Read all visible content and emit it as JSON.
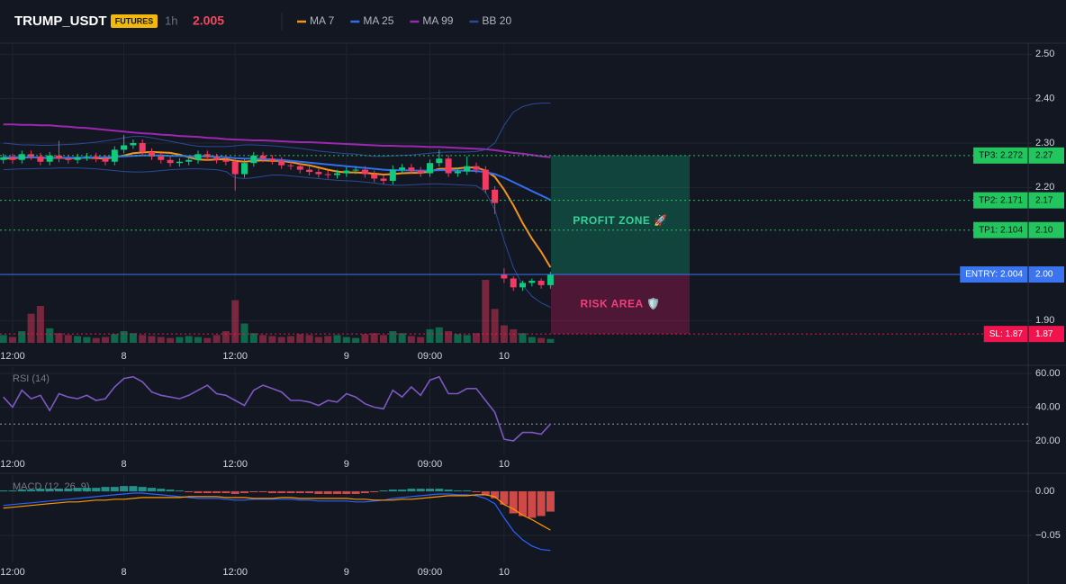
{
  "chart_data": [
    {
      "type": "candlestick",
      "title": "TRUMP_USDT",
      "badge": "FUTURES",
      "interval": "1h",
      "last_price": 2.005,
      "last_price_color": "#f6465d",
      "categories": [
        null,
        "12:00",
        null,
        null,
        null,
        null,
        null,
        null,
        null,
        null,
        null,
        null,
        null,
        "8",
        null,
        null,
        null,
        null,
        null,
        null,
        null,
        null,
        null,
        null,
        null,
        "12:00",
        null,
        null,
        null,
        null,
        null,
        null,
        null,
        null,
        null,
        null,
        null,
        "9",
        null,
        null,
        null,
        null,
        null,
        null,
        null,
        null,
        "09:00",
        null,
        null,
        null,
        null,
        null,
        null,
        null,
        "10",
        null,
        null,
        null,
        null,
        null
      ],
      "open": [
        2.262,
        2.268,
        2.262,
        2.275,
        2.27,
        2.258,
        2.272,
        2.265,
        2.262,
        2.268,
        2.27,
        2.265,
        2.258,
        2.285,
        2.295,
        2.3,
        2.28,
        2.27,
        2.262,
        2.255,
        2.258,
        2.262,
        2.275,
        2.268,
        2.262,
        2.258,
        2.23,
        2.255,
        2.272,
        2.265,
        2.26,
        2.25,
        2.248,
        2.24,
        2.235,
        2.23,
        2.228,
        2.232,
        2.238,
        2.24,
        2.23,
        2.22,
        2.215,
        2.24,
        2.245,
        2.238,
        2.232,
        2.255,
        2.265,
        2.232,
        2.236,
        2.248,
        2.24,
        2.195,
        2.005,
        1.995,
        1.975,
        1.985,
        1.99,
        1.98
      ],
      "high": [
        2.276,
        2.276,
        2.283,
        2.283,
        2.278,
        2.28,
        2.305,
        2.273,
        2.276,
        2.278,
        2.278,
        2.273,
        2.293,
        2.318,
        2.308,
        2.308,
        2.288,
        2.278,
        2.27,
        2.266,
        2.27,
        2.283,
        2.283,
        2.276,
        2.27,
        2.266,
        2.263,
        2.28,
        2.28,
        2.273,
        2.268,
        2.258,
        2.256,
        2.248,
        2.243,
        2.238,
        2.24,
        2.246,
        2.248,
        2.248,
        2.238,
        2.228,
        2.25,
        2.253,
        2.253,
        2.246,
        2.263,
        2.285,
        2.273,
        2.244,
        2.27,
        2.256,
        2.248,
        2.203,
        2.018,
        2.0,
        1.99,
        1.995,
        1.995,
        2.01
      ],
      "low": [
        2.254,
        2.254,
        2.254,
        2.262,
        2.25,
        2.25,
        2.257,
        2.254,
        2.254,
        2.26,
        2.257,
        2.25,
        2.25,
        2.277,
        2.287,
        2.272,
        2.262,
        2.254,
        2.247,
        2.247,
        2.25,
        2.254,
        2.26,
        2.254,
        2.25,
        2.193,
        2.222,
        2.247,
        2.257,
        2.252,
        2.242,
        2.24,
        2.232,
        2.227,
        2.222,
        2.22,
        2.22,
        2.224,
        2.23,
        2.222,
        2.212,
        2.207,
        2.207,
        2.232,
        2.23,
        2.224,
        2.224,
        2.247,
        2.224,
        2.224,
        2.228,
        2.232,
        2.187,
        2.14,
        1.985,
        1.967,
        1.967,
        1.977,
        1.972,
        1.972
      ],
      "close": [
        2.268,
        2.262,
        2.275,
        2.27,
        2.258,
        2.272,
        2.265,
        2.262,
        2.268,
        2.27,
        2.265,
        2.258,
        2.285,
        2.295,
        2.3,
        2.28,
        2.27,
        2.262,
        2.255,
        2.258,
        2.262,
        2.275,
        2.268,
        2.262,
        2.258,
        2.23,
        2.255,
        2.272,
        2.265,
        2.26,
        2.25,
        2.248,
        2.24,
        2.235,
        2.23,
        2.228,
        2.232,
        2.238,
        2.24,
        2.23,
        2.22,
        2.215,
        2.24,
        2.245,
        2.238,
        2.232,
        2.255,
        2.265,
        2.232,
        2.236,
        2.248,
        2.24,
        2.195,
        2.165,
        1.995,
        1.975,
        1.985,
        1.99,
        1.98,
        2.005
      ],
      "volume": [
        8,
        6,
        12,
        30,
        38,
        15,
        10,
        8,
        7,
        6,
        5,
        6,
        9,
        12,
        10,
        8,
        7,
        6,
        5,
        6,
        7,
        6,
        5,
        8,
        12,
        44,
        20,
        10,
        8,
        7,
        6,
        7,
        9,
        8,
        6,
        7,
        8,
        6,
        5,
        9,
        10,
        8,
        12,
        10,
        7,
        6,
        14,
        16,
        12,
        9,
        8,
        10,
        65,
        35,
        18,
        14,
        10,
        6,
        5,
        4
      ],
      "up_color": "#0ecb81",
      "down_color": "#f23a62",
      "series": [
        {
          "name": "MA 7",
          "color": "#f7931a",
          "values": [
            2.265,
            2.266,
            2.267,
            2.268,
            2.267,
            2.266,
            2.267,
            2.266,
            2.266,
            2.267,
            2.266,
            2.265,
            2.268,
            2.272,
            2.277,
            2.279,
            2.28,
            2.279,
            2.278,
            2.274,
            2.268,
            2.263,
            2.262,
            2.263,
            2.264,
            2.26,
            2.258,
            2.26,
            2.261,
            2.26,
            2.26,
            2.257,
            2.253,
            2.25,
            2.245,
            2.24,
            2.236,
            2.234,
            2.234,
            2.233,
            2.231,
            2.229,
            2.23,
            2.232,
            2.233,
            2.233,
            2.236,
            2.242,
            2.242,
            2.243,
            2.245,
            2.245,
            2.238,
            2.224,
            2.195,
            2.16,
            2.12,
            2.085,
            2.055,
            2.02
          ]
        },
        {
          "name": "MA 25",
          "color": "#2f6fed",
          "values": [
            2.268,
            2.268,
            2.268,
            2.268,
            2.267,
            2.267,
            2.267,
            2.267,
            2.267,
            2.267,
            2.268,
            2.268,
            2.269,
            2.27,
            2.271,
            2.272,
            2.272,
            2.272,
            2.271,
            2.271,
            2.27,
            2.27,
            2.27,
            2.269,
            2.268,
            2.266,
            2.265,
            2.265,
            2.264,
            2.263,
            2.262,
            2.26,
            2.258,
            2.256,
            2.254,
            2.252,
            2.25,
            2.248,
            2.246,
            2.244,
            2.242,
            2.24,
            2.239,
            2.239,
            2.238,
            2.238,
            2.238,
            2.239,
            2.239,
            2.238,
            2.238,
            2.237,
            2.235,
            2.23,
            2.222,
            2.212,
            2.202,
            2.192,
            2.182,
            2.172
          ]
        },
        {
          "name": "MA 99",
          "color": "#9c27b0",
          "values": [
            2.342,
            2.342,
            2.341,
            2.341,
            2.34,
            2.34,
            2.338,
            2.337,
            2.335,
            2.334,
            2.332,
            2.33,
            2.328,
            2.326,
            2.324,
            2.322,
            2.321,
            2.319,
            2.318,
            2.316,
            2.315,
            2.314,
            2.312,
            2.311,
            2.309,
            2.308,
            2.307,
            2.306,
            2.306,
            2.305,
            2.304,
            2.303,
            2.302,
            2.302,
            2.301,
            2.3,
            2.299,
            2.298,
            2.297,
            2.296,
            2.295,
            2.294,
            2.294,
            2.293,
            2.293,
            2.292,
            2.291,
            2.291,
            2.29,
            2.289,
            2.288,
            2.287,
            2.286,
            2.284,
            2.281,
            2.278,
            2.276,
            2.273,
            2.27,
            2.268
          ]
        },
        {
          "name": "BB 20",
          "color": "#2a4a9a",
          "values": [
            2.3,
            2.298,
            2.296,
            2.296,
            2.295,
            2.295,
            2.296,
            2.297,
            2.298,
            2.3,
            2.302,
            2.305,
            2.308,
            2.312,
            2.315,
            2.315,
            2.312,
            2.308,
            2.304,
            2.3,
            2.296,
            2.293,
            2.292,
            2.292,
            2.292,
            2.294,
            2.296,
            2.296,
            2.295,
            2.294,
            2.292,
            2.29,
            2.288,
            2.285,
            2.282,
            2.28,
            2.278,
            2.276,
            2.275,
            2.272,
            2.27,
            2.27,
            2.271,
            2.272,
            2.273,
            2.275,
            2.277,
            2.279,
            2.28,
            2.28,
            2.28,
            2.281,
            2.285,
            2.3,
            2.34,
            2.37,
            2.382,
            2.388,
            2.39,
            2.39
          ],
          "lower": [
            2.24,
            2.241,
            2.242,
            2.242,
            2.243,
            2.243,
            2.244,
            2.244,
            2.244,
            2.243,
            2.242,
            2.24,
            2.238,
            2.236,
            2.235,
            2.235,
            2.236,
            2.238,
            2.24,
            2.241,
            2.242,
            2.242,
            2.241,
            2.24,
            2.236,
            2.222,
            2.22,
            2.222,
            2.225,
            2.228,
            2.228,
            2.226,
            2.224,
            2.222,
            2.22,
            2.218,
            2.216,
            2.215,
            2.214,
            2.212,
            2.21,
            2.207,
            2.205,
            2.205,
            2.206,
            2.207,
            2.208,
            2.208,
            2.207,
            2.206,
            2.205,
            2.204,
            2.19,
            2.15,
            2.08,
            2.02,
            1.98,
            1.955,
            1.94,
            1.93
          ]
        }
      ],
      "levels": [
        {
          "kind": "tp",
          "label": "TP3: 2.272",
          "value": 2.272,
          "price_label": "2.27",
          "color": "#22c55e"
        },
        {
          "kind": "tp",
          "label": "TP2: 2.171",
          "value": 2.171,
          "price_label": "2.17",
          "color": "#22c55e"
        },
        {
          "kind": "tp",
          "label": "TP1: 2.104",
          "value": 2.104,
          "price_label": "2.10",
          "color": "#22c55e"
        },
        {
          "kind": "entry",
          "label": "ENTRY: 2.004",
          "value": 2.004,
          "price_label": "2.00",
          "color": "#3b74f0"
        },
        {
          "kind": "sl",
          "label": "SL: 1.87",
          "value": 1.87,
          "price_label": "1.87",
          "color": "#f0134d"
        }
      ],
      "zones": {
        "profit": {
          "label": "PROFIT ZONE 🚀",
          "color": "#10b981",
          "text_color": "#34d399"
        },
        "risk": {
          "label": "RISK AREA 🛡️",
          "color": "#be185d",
          "text_color": "#f43f7a"
        }
      },
      "ylim": [
        1.85,
        2.525
      ],
      "yticks": [
        {
          "value": 2.5,
          "label": "2.50"
        },
        {
          "value": 2.4,
          "label": "2.40"
        },
        {
          "value": 2.3,
          "label": "2.30"
        },
        {
          "value": 2.2,
          "label": "2.20"
        },
        {
          "value": 1.9,
          "label": "1.90"
        }
      ],
      "grid": true
    },
    {
      "type": "line",
      "title": "RSI (14)",
      "color": "#7e57c2",
      "values": [
        46,
        40,
        50,
        45,
        47,
        38,
        48,
        46,
        45,
        47,
        44,
        45,
        52,
        57,
        58,
        55,
        49,
        47,
        46,
        45,
        47,
        50,
        53,
        48,
        47,
        44,
        41,
        50,
        53,
        51,
        49,
        44,
        44,
        43,
        41,
        44,
        43,
        48,
        46,
        42,
        40,
        39,
        50,
        46,
        52,
        47,
        56,
        58,
        48,
        48,
        51,
        51,
        44,
        37,
        21,
        20,
        25,
        25,
        24,
        30
      ],
      "hline": 30,
      "ylim": [
        12,
        63.7
      ],
      "yticks": [
        {
          "value": 60,
          "label": "60.00"
        },
        {
          "value": 40,
          "label": "40.00"
        },
        {
          "value": 20,
          "label": "20.00"
        }
      ],
      "grid": true
    },
    {
      "type": "macd",
      "title": "MACD (12, 26, 9)",
      "up_color": "#26a69a",
      "down_color": "#ef5350",
      "values": [
        0.001,
        0.001,
        0.002,
        0.002,
        0.003,
        0.003,
        0.003,
        0.003,
        0.004,
        0.004,
        0.004,
        0.005,
        0.005,
        0.006,
        0.006,
        0.005,
        0.004,
        0.003,
        0.002,
        0.001,
        -0.001,
        -0.002,
        -0.002,
        -0.002,
        -0.002,
        -0.003,
        -0.002,
        -0.001,
        -0.001,
        -0.002,
        -0.002,
        -0.002,
        -0.002,
        -0.002,
        -0.003,
        -0.003,
        -0.003,
        -0.003,
        -0.003,
        -0.002,
        -0.001,
        0.001,
        0.002,
        0.002,
        0.003,
        0.003,
        0.003,
        0.003,
        0.002,
        0.001,
        0.001,
        -0.001,
        -0.004,
        -0.008,
        -0.015,
        -0.025,
        -0.028,
        -0.03,
        -0.028,
        -0.023
      ],
      "series": [
        {
          "color": "#2962ff",
          "values": [
            -0.016,
            -0.015,
            -0.014,
            -0.013,
            -0.012,
            -0.011,
            -0.01,
            -0.009,
            -0.008,
            -0.007,
            -0.006,
            -0.005,
            -0.004,
            -0.003,
            -0.002,
            -0.002,
            -0.003,
            -0.004,
            -0.005,
            -0.006,
            -0.007,
            -0.008,
            -0.008,
            -0.008,
            -0.009,
            -0.01,
            -0.01,
            -0.009,
            -0.009,
            -0.009,
            -0.009,
            -0.009,
            -0.01,
            -0.01,
            -0.011,
            -0.011,
            -0.011,
            -0.011,
            -0.012,
            -0.012,
            -0.011,
            -0.01,
            -0.008,
            -0.007,
            -0.006,
            -0.005,
            -0.004,
            -0.003,
            -0.003,
            -0.004,
            -0.004,
            -0.005,
            -0.008,
            -0.014,
            -0.03,
            -0.045,
            -0.055,
            -0.062,
            -0.066,
            -0.067
          ]
        },
        {
          "color": "#ff9800",
          "values": [
            -0.019,
            -0.018,
            -0.017,
            -0.016,
            -0.015,
            -0.014,
            -0.013,
            -0.012,
            -0.012,
            -0.011,
            -0.01,
            -0.01,
            -0.009,
            -0.009,
            -0.008,
            -0.007,
            -0.007,
            -0.007,
            -0.007,
            -0.007,
            -0.006,
            -0.006,
            -0.006,
            -0.006,
            -0.007,
            -0.007,
            -0.007,
            -0.008,
            -0.008,
            -0.008,
            -0.007,
            -0.007,
            -0.008,
            -0.008,
            -0.008,
            -0.008,
            -0.008,
            -0.008,
            -0.009,
            -0.009,
            -0.01,
            -0.01,
            -0.01,
            -0.009,
            -0.009,
            -0.008,
            -0.007,
            -0.006,
            -0.005,
            -0.005,
            -0.005,
            -0.004,
            -0.004,
            -0.006,
            -0.015,
            -0.02,
            -0.027,
            -0.032,
            -0.038,
            -0.044
          ]
        }
      ],
      "ylim": [
        -0.0806,
        0.0184
      ],
      "yticks": [
        {
          "value": 0,
          "label": "0.00"
        },
        {
          "value": -0.05,
          "label": "−0.05"
        }
      ],
      "grid": true
    }
  ]
}
